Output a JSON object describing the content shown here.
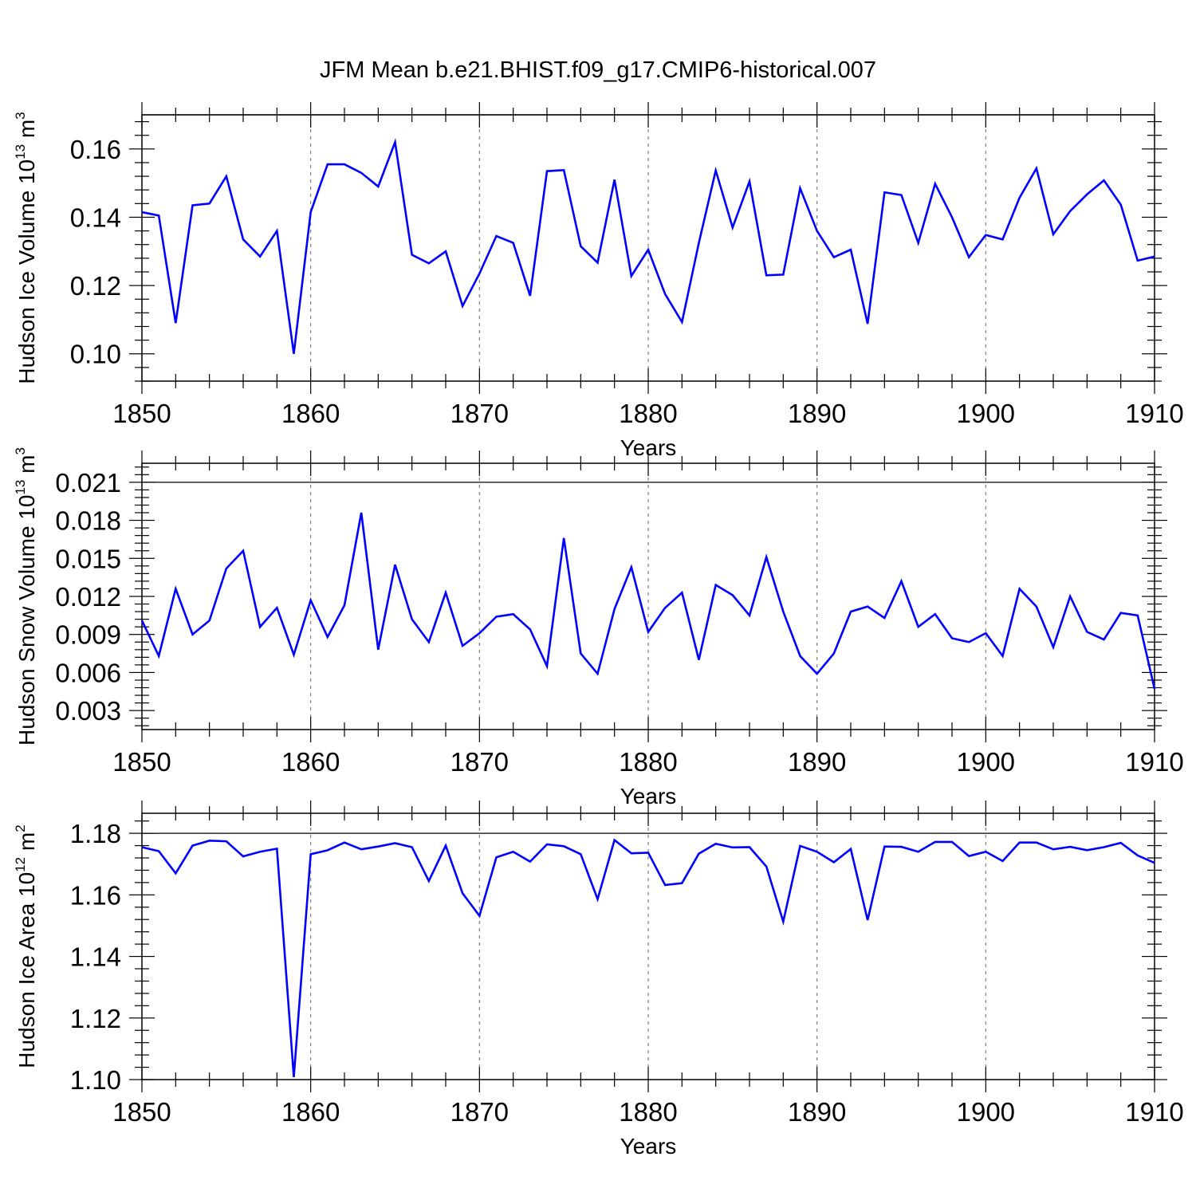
{
  "figure_title": "JFM Mean b.e21.BHIST.f09_g17.CMIP6-historical.007",
  "colors": {
    "series": "#0000ff",
    "grid": "#808080",
    "axis": "#000000"
  },
  "chart_data": [
    {
      "type": "line",
      "title": "JFM Mean b.e21.BHIST.f09_g17.CMIP6-historical.007",
      "ylabel": "Hudson Ice Volume 10",
      "ylabel_exp": "13",
      "ylabel_unit": " m",
      "ylabel_unit_exp": "3",
      "xlabel": "Years",
      "xlim": [
        1850,
        1910
      ],
      "ylim": [
        0.092,
        0.17
      ],
      "xticks": [
        1850,
        1860,
        1870,
        1880,
        1890,
        1900,
        1910
      ],
      "xtick_labels": [
        "1850",
        "1860",
        "1870",
        "1880",
        "1890",
        "1900",
        "1910"
      ],
      "yticks": [
        0.1,
        0.12,
        0.14,
        0.16
      ],
      "ytick_labels": [
        "0.10",
        "0.12",
        "0.14",
        "0.16"
      ],
      "ref_line": 0.17,
      "grid": "dashed vertical at major x ticks",
      "series": [
        {
          "name": "Hudson Ice Volume",
          "x_start": 1850,
          "values": [
            0.1415,
            0.1405,
            0.109,
            0.1435,
            0.144,
            0.152,
            0.1335,
            0.1285,
            0.136,
            0.1,
            0.1415,
            0.1555,
            0.1555,
            0.153,
            0.149,
            0.162,
            0.129,
            0.1265,
            0.13,
            0.114,
            0.1235,
            0.1345,
            0.1325,
            0.117,
            0.1535,
            0.1538,
            0.1315,
            0.1267,
            0.151,
            0.1228,
            0.1305,
            0.1175,
            0.1093,
            0.1325,
            0.1537,
            0.137,
            0.1505,
            0.123,
            0.1232,
            0.1485,
            0.136,
            0.1283,
            0.1305,
            0.1088,
            0.1473,
            0.1465,
            0.1325,
            0.1498,
            0.14,
            0.1283,
            0.1348,
            0.1335,
            0.1457,
            0.1543,
            0.135,
            0.1418,
            0.1467,
            0.1508,
            0.1437,
            0.1273,
            0.1285
          ]
        }
      ]
    },
    {
      "type": "line",
      "ylabel": "Hudson Snow Volume 10",
      "ylabel_exp": "13",
      "ylabel_unit": " m",
      "ylabel_unit_exp": "3",
      "xlabel": "Years",
      "xlim": [
        1850,
        1910
      ],
      "ylim": [
        0.0015,
        0.0225
      ],
      "xticks": [
        1850,
        1860,
        1870,
        1880,
        1890,
        1900,
        1910
      ],
      "xtick_labels": [
        "1850",
        "1860",
        "1870",
        "1880",
        "1890",
        "1900",
        "1910"
      ],
      "yticks": [
        0.003,
        0.006,
        0.009,
        0.012,
        0.015,
        0.018,
        0.021
      ],
      "ytick_labels": [
        "0.003",
        "0.006",
        "0.009",
        "0.012",
        "0.015",
        "0.018",
        "0.021"
      ],
      "ref_line": 0.021,
      "grid": "dashed vertical at major x ticks",
      "series": [
        {
          "name": "Hudson Snow Volume",
          "x_start": 1850,
          "values": [
            0.0101,
            0.0073,
            0.0126,
            0.009,
            0.0101,
            0.0142,
            0.0156,
            0.0096,
            0.0111,
            0.0074,
            0.0117,
            0.0088,
            0.0113,
            0.0186,
            0.0078,
            0.0145,
            0.0102,
            0.0084,
            0.0123,
            0.0081,
            0.0091,
            0.0104,
            0.0106,
            0.0094,
            0.0065,
            0.0166,
            0.0075,
            0.0059,
            0.011,
            0.0143,
            0.0092,
            0.0111,
            0.0123,
            0.007,
            0.0129,
            0.0121,
            0.0105,
            0.0151,
            0.0108,
            0.0073,
            0.0059,
            0.0075,
            0.0108,
            0.0112,
            0.0103,
            0.0132,
            0.0096,
            0.0106,
            0.0087,
            0.0084,
            0.0091,
            0.0073,
            0.0126,
            0.0112,
            0.008,
            0.012,
            0.0092,
            0.0086,
            0.0107,
            0.0105,
            0.0047
          ]
        }
      ]
    },
    {
      "type": "line",
      "ylabel": "Hudson Ice Area 10",
      "ylabel_exp": "12",
      "ylabel_unit": " m",
      "ylabel_unit_exp": "2",
      "xlabel": "Years",
      "xlim": [
        1850,
        1910
      ],
      "ylim": [
        1.1,
        1.1865
      ],
      "xticks": [
        1850,
        1860,
        1870,
        1880,
        1890,
        1900,
        1910
      ],
      "xtick_labels": [
        "1850",
        "1860",
        "1870",
        "1880",
        "1890",
        "1900",
        "1910"
      ],
      "yticks": [
        1.1,
        1.12,
        1.14,
        1.16,
        1.18
      ],
      "ytick_labels": [
        "1.10",
        "1.12",
        "1.14",
        "1.16",
        "1.18"
      ],
      "ref_line": 1.18,
      "grid": "dashed vertical at major x ticks",
      "series": [
        {
          "name": "Hudson Ice Area",
          "x_start": 1850,
          "values": [
            1.1755,
            1.1742,
            1.167,
            1.176,
            1.1776,
            1.1774,
            1.1725,
            1.174,
            1.175,
            1.1008,
            1.1732,
            1.1745,
            1.177,
            1.1748,
            1.1757,
            1.1768,
            1.1755,
            1.1645,
            1.176,
            1.1605,
            1.1532,
            1.1722,
            1.174,
            1.1708,
            1.1764,
            1.1758,
            1.1732,
            1.1586,
            1.1778,
            1.1735,
            1.1737,
            1.1632,
            1.1638,
            1.1734,
            1.1766,
            1.1754,
            1.1755,
            1.1692,
            1.1513,
            1.1759,
            1.174,
            1.1706,
            1.1749,
            1.1518,
            1.1757,
            1.1756,
            1.174,
            1.1772,
            1.1772,
            1.1726,
            1.174,
            1.171,
            1.177,
            1.177,
            1.1748,
            1.1756,
            1.1745,
            1.1755,
            1.1769,
            1.1728,
            1.1704
          ]
        }
      ]
    }
  ]
}
